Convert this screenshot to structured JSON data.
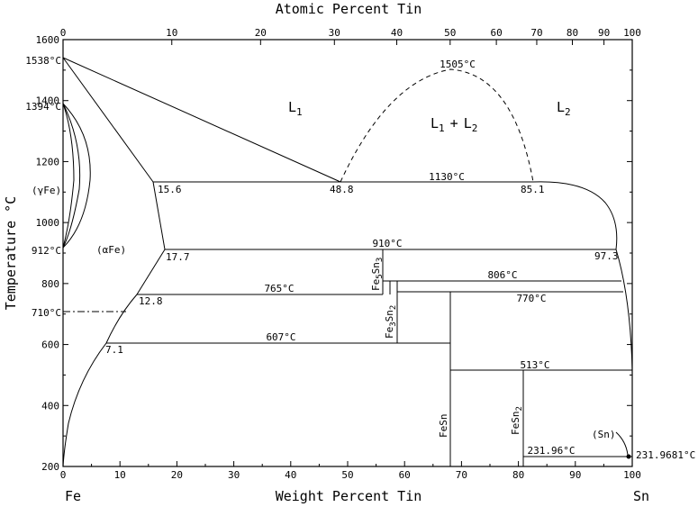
{
  "diagram": {
    "top_axis_title": "Atomic Percent Tin",
    "bottom_axis_title": "Weight Percent Tin",
    "y_axis_title": "Temperature °C",
    "left_element": "Fe",
    "right_element": "Sn",
    "top_ticks": [
      "0",
      "10",
      "20",
      "30",
      "40",
      "50",
      "60",
      "70",
      "80",
      "90",
      "100"
    ],
    "bottom_ticks": [
      "0",
      "10",
      "20",
      "30",
      "40",
      "50",
      "60",
      "70",
      "80",
      "90",
      "100"
    ],
    "y_ticks": [
      "200",
      "400",
      "600",
      "800",
      "1000",
      "1200",
      "1400",
      "1600"
    ],
    "labels": {
      "t1538": "1538°C",
      "t1394": "1394°C",
      "t912": "912°C",
      "t710": "710°C",
      "t1505": "1505°C",
      "t1130": "1130°C",
      "t910": "910°C",
      "t806": "806°C",
      "t765": "765°C",
      "t770": "770°C",
      "t607": "607°C",
      "t513": "513°C",
      "t23196": "231.96°C",
      "t2319681": "231.9681°C",
      "c156": "15.6",
      "c488": "48.8",
      "c851": "85.1",
      "c177": "17.7",
      "c973": "97.3",
      "c128": "12.8",
      "c71": "7.1",
      "L1": "L",
      "L1sub": "1",
      "L2": "L",
      "L2sub": "2",
      "L1L2a": "L",
      "L1L2asub": "1",
      "L1L2plus": "+",
      "L1L2b": "L",
      "L1L2bsub": "2",
      "gammaFe": "(γFe)",
      "alphaFe": "(αFe)",
      "Sn_phase": "(Sn)",
      "Fe5Sn3_a": "Fe",
      "Fe5Sn3_b": "5",
      "Fe5Sn3_c": "Sn",
      "Fe5Sn3_d": "3",
      "Fe3Sn2_a": "Fe",
      "Fe3Sn2_b": "3",
      "Fe3Sn2_c": "Sn",
      "Fe3Sn2_d": "2",
      "FeSn": "FeSn",
      "FeSn2_a": "FeSn",
      "FeSn2_b": "2"
    }
  }
}
